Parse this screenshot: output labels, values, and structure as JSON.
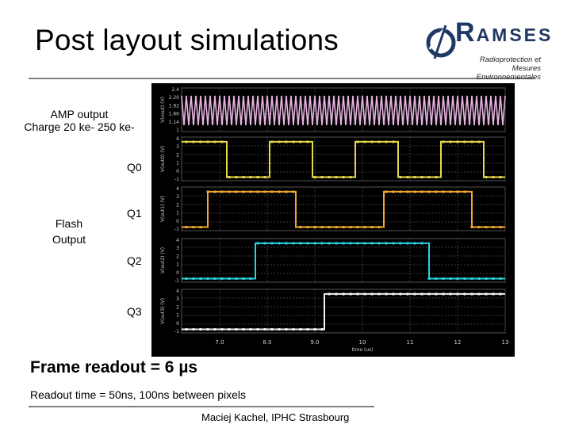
{
  "slide": {
    "title": "Post layout simulations",
    "amp_label_line1": "AMP output",
    "amp_label_line2": "Charge 20 ke- 250 ke-",
    "flash_label_line1": "Flash",
    "flash_label_line2": "Output",
    "frame_readout": "Frame readout = 6 µs",
    "readout_time": "Readout time = 50ns, 100ns between pixels",
    "footer": "Maciej Kachel, IPHC Strasbourg"
  },
  "logo": {
    "name_big": "R",
    "name_rest": "AMSES",
    "subtitle_line1": "Radioprotection et",
    "subtitle_line2": "Mesures Environnementales",
    "color": "#1f3864"
  },
  "chart_data": {
    "type": "line",
    "x_tick_labels": [
      "7.0",
      "8.0",
      "9.0",
      "10",
      "11",
      "12",
      "13"
    ],
    "x_ticks": [
      7,
      8,
      9,
      10,
      11,
      12,
      13
    ],
    "x_range": [
      6.2,
      13.0
    ],
    "xlabel": "time (us)",
    "panels": [
      {
        "label": "",
        "ylabel": "V(vout) (V)",
        "color": "#e8b4e2",
        "y_range": [
          1.0,
          2.4
        ],
        "y_tick_labels": [
          "2.4",
          "2.20",
          "1.92",
          "1.66",
          "1.14",
          "1"
        ],
        "signal": "fast_oscillation",
        "period": 0.1,
        "low": 1.2,
        "high": 2.15
      },
      {
        "label": "Q0",
        "ylabel": "V(out0) (V)",
        "color": "#e5d84a",
        "y_range": [
          -0.3,
          3.4
        ],
        "y_tick_labels": [
          "4",
          "3",
          "2",
          "1",
          "0",
          "-1"
        ],
        "high": 3.0,
        "low": 0.0,
        "x": [
          6.2,
          7.15,
          7.15,
          8.05,
          8.05,
          8.95,
          8.95,
          9.85,
          9.85,
          10.75,
          10.75,
          11.65,
          11.65,
          12.55,
          12.55,
          13.0
        ],
        "y": [
          3,
          3,
          0,
          0,
          3,
          3,
          0,
          0,
          3,
          3,
          0,
          0,
          3,
          3,
          0,
          0
        ]
      },
      {
        "label": "Q1",
        "ylabel": "V(out1) (V)",
        "color": "#f0a830",
        "y_range": [
          -0.3,
          3.4
        ],
        "y_tick_labels": [
          "4",
          "3",
          "2",
          "1",
          "0",
          "-1"
        ],
        "high": 3.0,
        "low": 0.0,
        "x": [
          6.2,
          6.75,
          6.75,
          8.6,
          8.6,
          10.45,
          10.45,
          12.3,
          12.3,
          13.0
        ],
        "y": [
          0,
          0,
          3,
          3,
          0,
          0,
          3,
          3,
          0,
          0
        ]
      },
      {
        "label": "Q2",
        "ylabel": "V(out2) (V)",
        "color": "#2ad2e0",
        "y_range": [
          -0.3,
          3.4
        ],
        "y_tick_labels": [
          "4",
          "3",
          "2",
          "1",
          "0",
          "-1"
        ],
        "high": 3.0,
        "low": 0.0,
        "x": [
          6.2,
          7.75,
          7.75,
          11.4,
          11.4,
          13.0
        ],
        "y": [
          0,
          0,
          3,
          3,
          0,
          0
        ]
      },
      {
        "label": "Q3",
        "ylabel": "V(out3) (V)",
        "color": "#f2f2f2",
        "y_range": [
          -0.3,
          3.4
        ],
        "y_tick_labels": [
          "4",
          "3",
          "2",
          "1",
          "0",
          "-1"
        ],
        "high": 3.0,
        "low": 0.0,
        "x": [
          6.2,
          9.2,
          9.2,
          13.0
        ],
        "y": [
          0,
          0,
          3,
          3
        ]
      }
    ],
    "grid": true,
    "legend": "none"
  }
}
